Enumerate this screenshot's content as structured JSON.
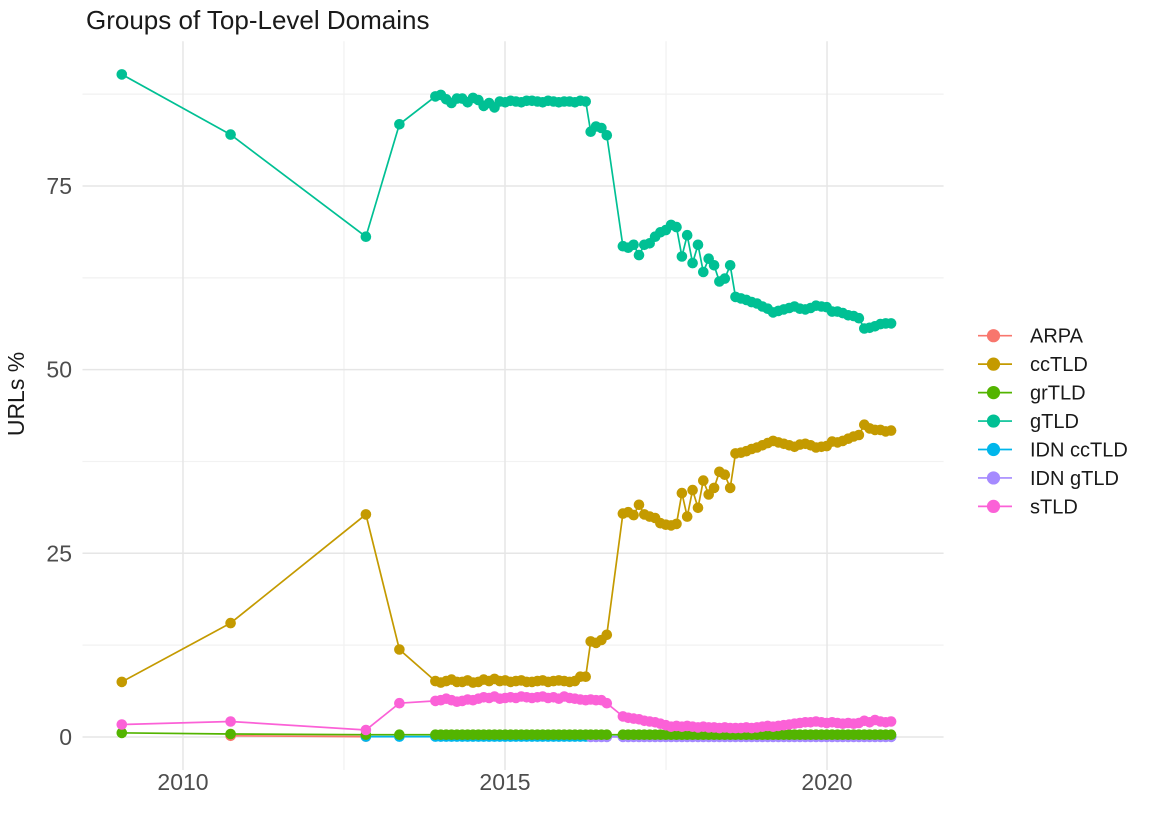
{
  "chart_data": {
    "type": "line",
    "title": "Groups of Top-Level Domains",
    "xlabel": "",
    "ylabel": "URLs %",
    "x_ticks": [
      2010,
      2015,
      2020
    ],
    "x_minor_ticks": [
      2012.5,
      2017.5
    ],
    "y_ticks": [
      0,
      25,
      50,
      75
    ],
    "y_minor_ticks": [
      12.5,
      37.5,
      62.5,
      87.5
    ],
    "xlim": [
      2008.44,
      2021.81
    ],
    "ylim": [
      -4.5,
      94.7
    ],
    "grid": "major+minor",
    "legend_position": "right",
    "legend_order": [
      "ARPA",
      "ccTLD",
      "grTLD",
      "gTLD",
      "IDN ccTLD",
      "IDN gTLD",
      "sTLD"
    ],
    "colors": {
      "ARPA": "#F8766D",
      "ccTLD": "#C49A00",
      "grTLD": "#53B400",
      "gTLD": "#00C094",
      "IDN ccTLD": "#00B6EB",
      "IDN gTLD": "#A58AFF",
      "sTLD": "#FB61D7"
    },
    "series": [
      {
        "name": "ARPA",
        "color": "#F8766D",
        "points": [
          [
            2010.74,
            0.15
          ],
          [
            2012.84,
            0.05
          ]
        ]
      },
      {
        "name": "IDN ccTLD",
        "color": "#00B6EB",
        "points": [
          [
            2012.84,
            0.05
          ],
          [
            2013.36,
            0.05
          ]
        ],
        "runs": [
          {
            "x0": 2013.92,
            "dx": 0.0833,
            "n": 29,
            "c": 0.05
          },
          {
            "x0": 2016.33,
            "dx": 0.0833,
            "n": 4,
            "c": 0.05
          },
          {
            "x0": 2016.83,
            "dx": 0.0833,
            "n": 51,
            "c": 0.05
          }
        ]
      },
      {
        "name": "IDN gTLD",
        "color": "#A58AFF",
        "points": [],
        "runs": [
          {
            "x0": 2016.33,
            "dx": 0.0833,
            "n": 4,
            "c": 0.0
          },
          {
            "x0": 2016.83,
            "dx": 0.0833,
            "n": 51,
            "c": 0.0
          }
        ]
      },
      {
        "name": "grTLD",
        "color": "#53B400",
        "points": [
          [
            2009.05,
            0.55
          ],
          [
            2010.74,
            0.4
          ],
          [
            2012.84,
            0.3
          ],
          [
            2013.36,
            0.3
          ]
        ],
        "runs": [
          {
            "x0": 2013.92,
            "dx": 0.0833,
            "n": 29,
            "c": 0.3
          },
          {
            "x0": 2016.33,
            "dx": 0.0833,
            "n": 4,
            "c": 0.3
          },
          {
            "x0": 2016.83,
            "dx": 0.0833,
            "n": 51,
            "c": 0.3
          }
        ]
      },
      {
        "name": "ccTLD",
        "color": "#C49A00",
        "points": [
          [
            2009.05,
            7.5
          ],
          [
            2010.74,
            15.5
          ],
          [
            2012.84,
            30.3
          ],
          [
            2013.36,
            11.9
          ]
        ],
        "runs": [
          {
            "x0": 2013.92,
            "dx": 0.0833,
            "v": [
              7.6,
              7.4,
              7.6,
              7.8,
              7.5,
              7.5,
              7.7,
              7.4,
              7.5,
              7.8,
              7.6,
              7.9,
              7.6,
              7.7,
              7.5,
              7.6,
              7.7,
              7.5,
              7.5,
              7.6,
              7.7,
              7.5,
              7.6,
              7.7,
              7.6,
              7.5,
              7.6,
              8.2,
              8.2
            ]
          },
          {
            "x0": 2016.33,
            "dx": 0.0833,
            "v": [
              13.0,
              12.8,
              13.2,
              13.9
            ]
          },
          {
            "x0": 2016.83,
            "dx": 0.0833,
            "v": [
              30.4,
              30.6,
              30.2,
              31.6,
              30.3,
              30.0,
              29.8,
              29.1,
              28.9,
              28.8,
              29.0,
              33.2,
              30.0,
              33.6,
              31.2,
              34.9,
              33.0,
              33.9,
              36.1,
              35.7,
              33.9,
              38.6,
              38.7,
              38.9,
              39.2,
              39.4,
              39.7,
              40.0,
              40.3,
              40.1,
              39.9,
              39.7,
              39.5,
              39.8,
              39.9,
              39.7,
              39.4,
              39.5,
              39.6,
              40.2,
              40.1,
              40.3,
              40.6,
              40.9,
              41.1,
              42.5,
              42.0,
              41.8,
              41.8,
              41.6,
              41.7
            ]
          }
        ]
      },
      {
        "name": "gTLD",
        "color": "#00C094",
        "points": [
          [
            2009.05,
            90.2
          ],
          [
            2010.74,
            82.0
          ],
          [
            2012.84,
            68.1
          ],
          [
            2013.36,
            83.4
          ]
        ],
        "runs": [
          {
            "x0": 2013.92,
            "dx": 0.0833,
            "v": [
              87.2,
              87.4,
              86.8,
              86.3,
              86.9,
              86.9,
              86.4,
              87.0,
              86.7,
              85.9,
              86.3,
              85.7,
              86.5,
              86.4,
              86.6,
              86.5,
              86.4,
              86.6,
              86.6,
              86.5,
              86.4,
              86.6,
              86.5,
              86.4,
              86.5,
              86.5,
              86.4,
              86.6,
              86.5
            ]
          },
          {
            "x0": 2016.33,
            "dx": 0.0833,
            "v": [
              82.4,
              83.1,
              82.9,
              81.9
            ]
          },
          {
            "x0": 2016.83,
            "dx": 0.0833,
            "v": [
              66.8,
              66.6,
              67.0,
              65.6,
              67.0,
              67.2,
              68.1,
              68.7,
              69.0,
              69.7,
              69.4,
              65.4,
              68.3,
              64.5,
              67.0,
              63.3,
              65.1,
              64.2,
              62.0,
              62.4,
              64.2,
              59.9,
              59.7,
              59.5,
              59.2,
              59.0,
              58.6,
              58.3,
              57.8,
              58.0,
              58.2,
              58.4,
              58.6,
              58.3,
              58.2,
              58.4,
              58.7,
              58.6,
              58.5,
              57.9,
              57.9,
              57.7,
              57.4,
              57.3,
              57.0,
              55.6,
              55.7,
              55.9,
              56.2,
              56.3,
              56.3
            ]
          }
        ]
      },
      {
        "name": "sTLD",
        "color": "#FB61D7",
        "points": [
          [
            2009.05,
            1.7
          ],
          [
            2010.74,
            2.1
          ],
          [
            2012.84,
            0.95
          ],
          [
            2013.36,
            4.6
          ]
        ],
        "runs": [
          {
            "x0": 2013.92,
            "dx": 0.0833,
            "v": [
              4.9,
              5.0,
              5.2,
              5.0,
              4.8,
              4.9,
              5.1,
              5.0,
              5.2,
              5.4,
              5.3,
              5.5,
              5.2,
              5.3,
              5.4,
              5.3,
              5.5,
              5.4,
              5.3,
              5.4,
              5.5,
              5.3,
              5.4,
              5.2,
              5.5,
              5.3,
              5.2,
              5.1,
              5.0
            ]
          },
          {
            "x0": 2016.33,
            "dx": 0.0833,
            "v": [
              5.1,
              5.0,
              5.0,
              4.6
            ]
          },
          {
            "x0": 2016.83,
            "dx": 0.0833,
            "v": [
              2.8,
              2.6,
              2.5,
              2.4,
              2.2,
              2.1,
              2.0,
              1.8,
              1.6,
              1.4,
              1.5,
              1.4,
              1.5,
              1.4,
              1.3,
              1.4,
              1.3,
              1.3,
              1.2,
              1.3,
              1.2,
              1.2,
              1.2,
              1.3,
              1.2,
              1.3,
              1.4,
              1.5,
              1.4,
              1.5,
              1.6,
              1.7,
              1.8,
              1.9,
              2.0,
              2.0,
              2.1,
              2.0,
              1.9,
              2.0,
              1.9,
              1.8,
              1.9,
              1.8,
              1.9,
              2.2,
              2.0,
              2.3,
              2.1,
              2.0,
              2.1
            ]
          }
        ]
      }
    ]
  }
}
